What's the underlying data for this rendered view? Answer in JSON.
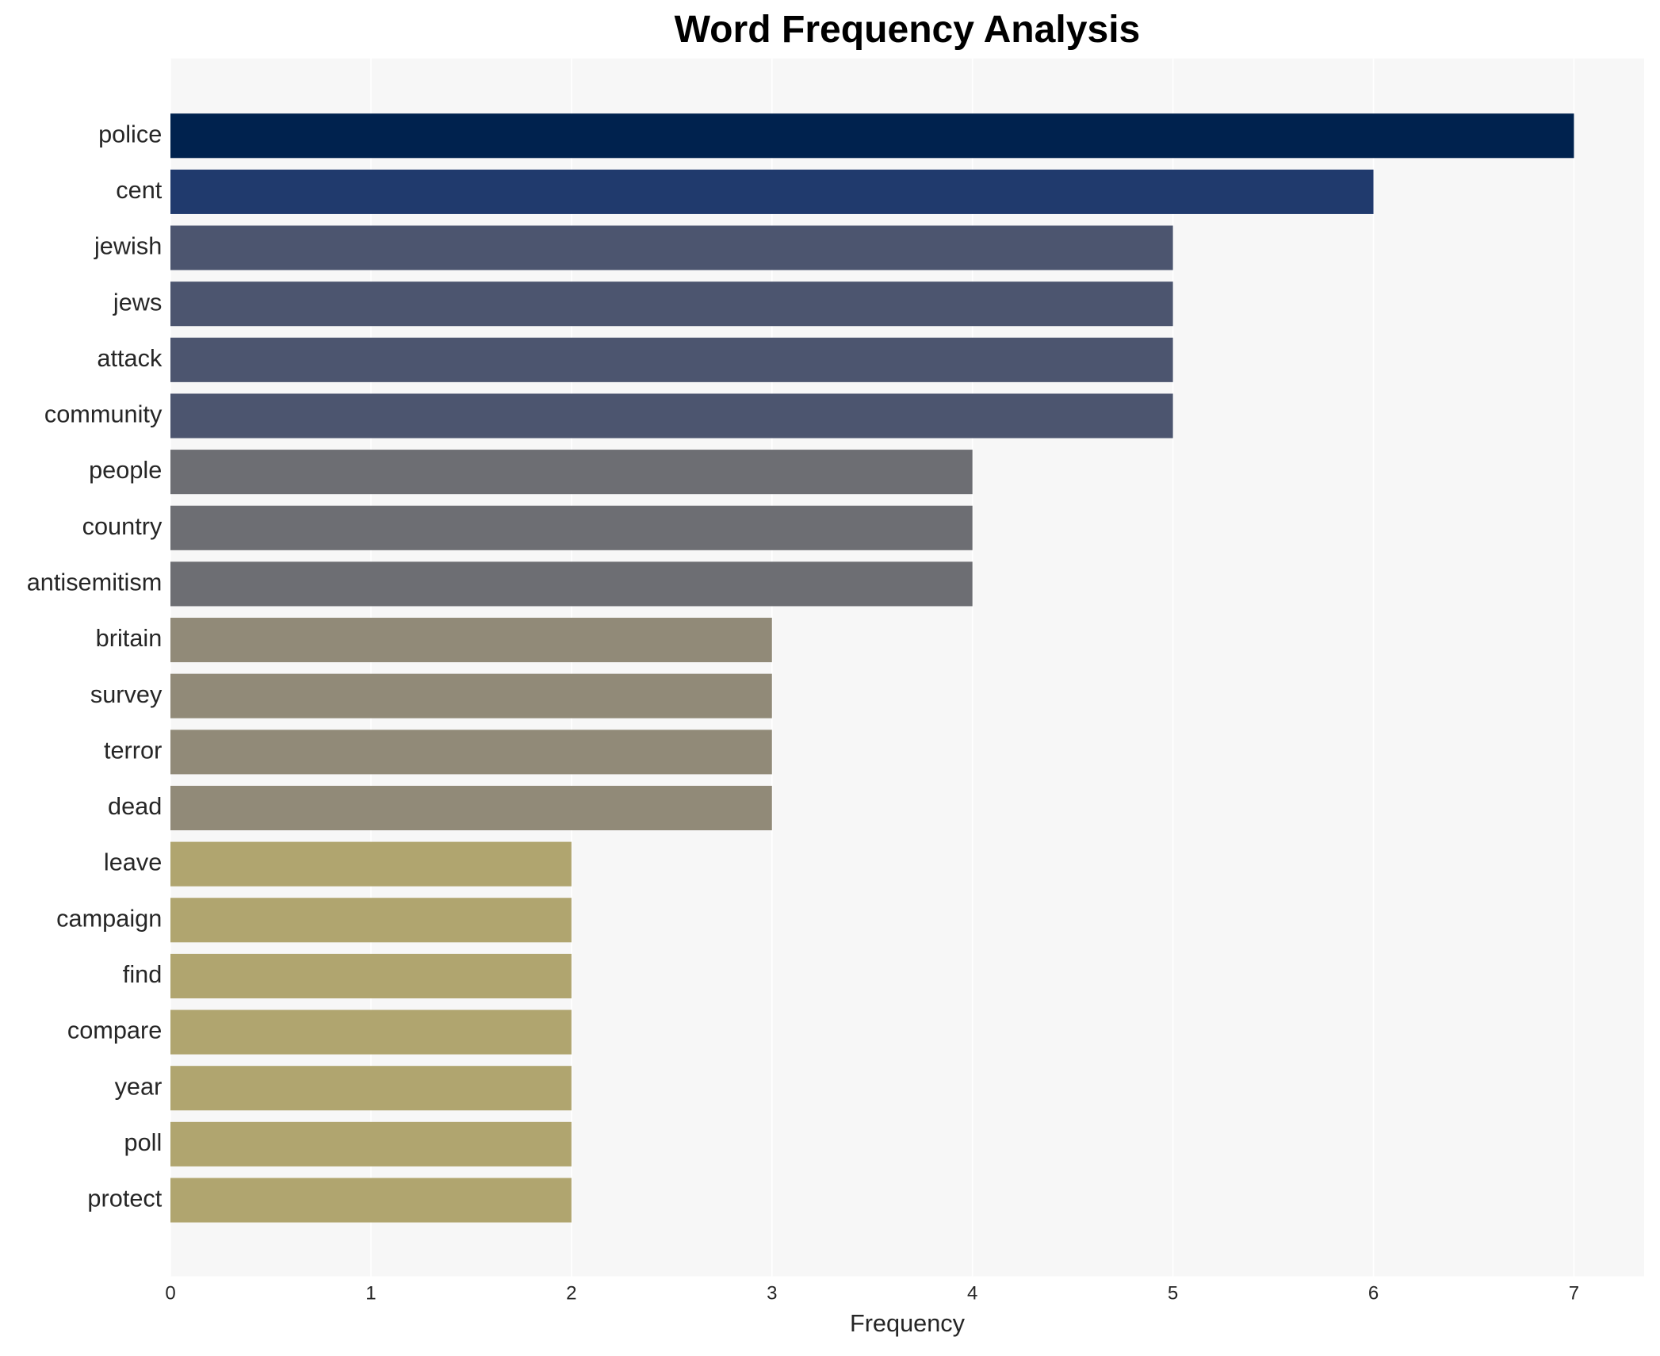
{
  "chart_data": {
    "type": "bar",
    "orientation": "horizontal",
    "title": "Word Frequency Analysis",
    "x_label": "Frequency",
    "categories": [
      "police",
      "cent",
      "jewish",
      "jews",
      "attack",
      "community",
      "people",
      "country",
      "antisemitism",
      "britain",
      "survey",
      "terror",
      "dead",
      "leave",
      "campaign",
      "find",
      "compare",
      "year",
      "poll",
      "protect"
    ],
    "values": [
      7,
      6,
      5,
      5,
      5,
      5,
      4,
      4,
      4,
      3,
      3,
      3,
      3,
      2,
      2,
      2,
      2,
      2,
      2,
      2
    ],
    "colors": [
      "#00224e",
      "#203a6d",
      "#4c556f",
      "#4c556f",
      "#4c556f",
      "#4c556f",
      "#6d6e73",
      "#6d6e73",
      "#6d6e73",
      "#918a78",
      "#918a78",
      "#918a78",
      "#918a78",
      "#b0a56f",
      "#b0a56f",
      "#b0a56f",
      "#b0a56f",
      "#b0a56f",
      "#b0a56f",
      "#b0a56f"
    ],
    "xlim": [
      0,
      7.35
    ],
    "xticks": [
      0,
      1,
      2,
      3,
      4,
      5,
      6,
      7
    ],
    "grid": true
  }
}
